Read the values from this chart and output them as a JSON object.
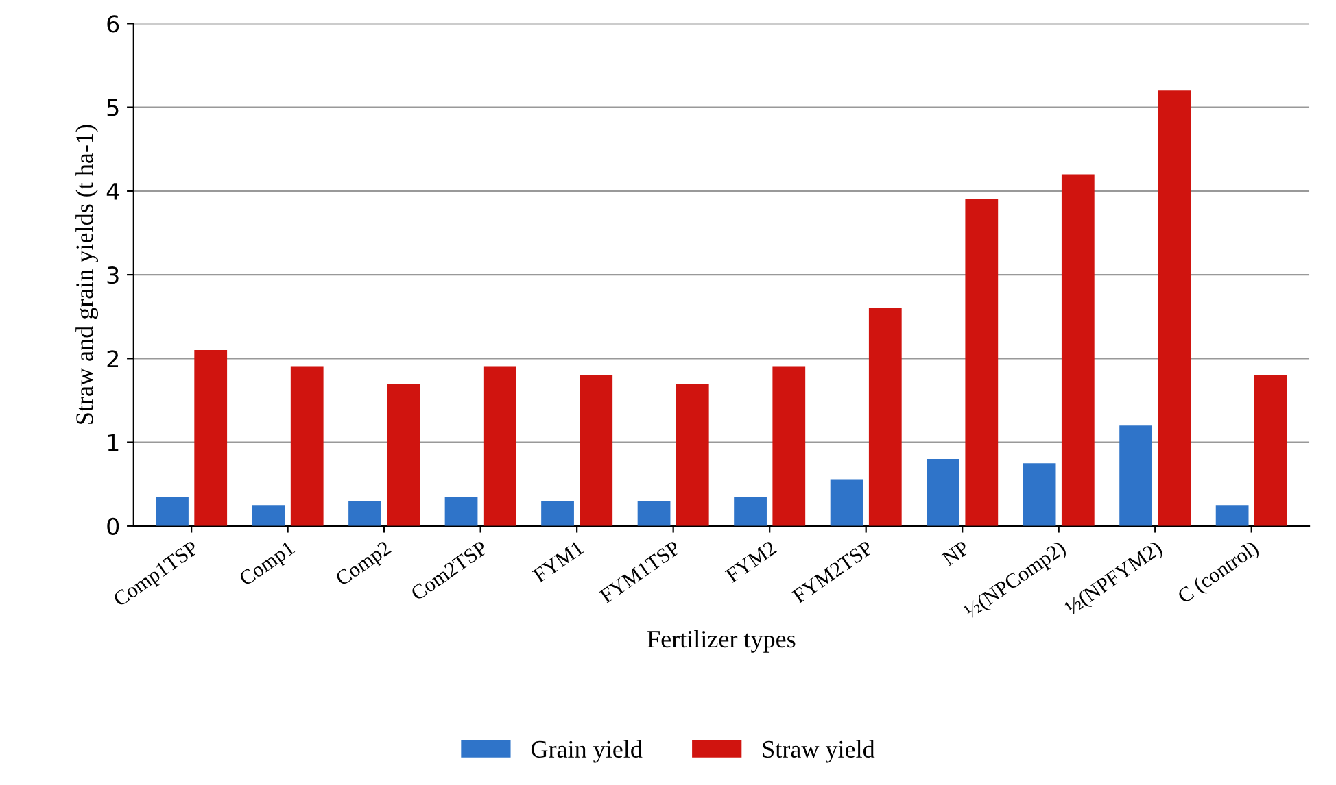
{
  "chart_data": {
    "type": "bar",
    "xlabel": "Fertilizer types",
    "ylabel": "Straw and grain yields (t ha-1)",
    "categories": [
      "Comp1TSP",
      "Comp1",
      "Comp2",
      "Com2TSP",
      "FYM1",
      "FYM1TSP",
      "FYM2",
      "FYM2TSP",
      "NP",
      "½(NPComp2)",
      "½(NPFYM2)",
      "C (control)"
    ],
    "series": [
      {
        "name": "Grain yield",
        "color": "#2f74c9",
        "values": [
          0.35,
          0.25,
          0.3,
          0.35,
          0.3,
          0.3,
          0.35,
          0.55,
          0.8,
          0.75,
          1.2,
          0.25
        ]
      },
      {
        "name": "Straw yield",
        "color": "#d0140f",
        "values": [
          2.1,
          1.9,
          1.7,
          1.9,
          1.8,
          1.7,
          1.9,
          2.6,
          3.9,
          4.2,
          5.2,
          1.8
        ]
      }
    ],
    "ylim": [
      0,
      6
    ],
    "yticks": [
      0,
      1,
      2,
      3,
      4,
      5,
      6
    ],
    "grid": "y",
    "legend": "bottom"
  }
}
